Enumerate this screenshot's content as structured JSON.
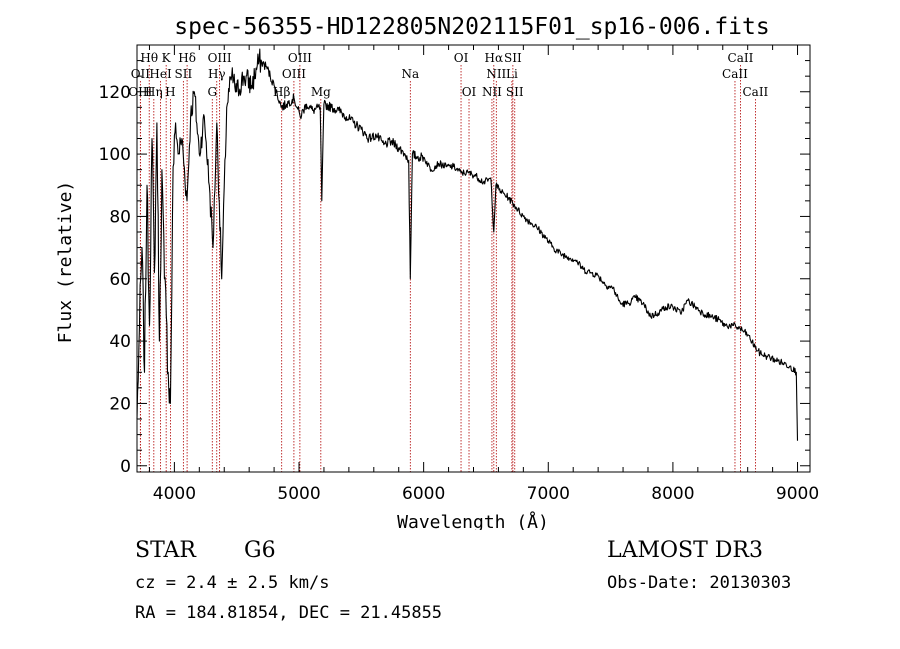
{
  "chart_data": {
    "type": "line",
    "title": "spec-56355-HD122805N202115F01_sp16-006.fits",
    "xlabel": "Wavelength (Å)",
    "ylabel": "Flux (relative)",
    "xlim": [
      3700,
      9100
    ],
    "ylim": [
      -2,
      135
    ],
    "x_ticks": [
      4000,
      5000,
      6000,
      7000,
      8000,
      9000
    ],
    "y_ticks": [
      0,
      20,
      40,
      60,
      80,
      100,
      120
    ],
    "grid": false,
    "series": [
      {
        "name": "spectrum",
        "x": [
          3700,
          3720,
          3740,
          3760,
          3780,
          3800,
          3820,
          3840,
          3860,
          3880,
          3900,
          3920,
          3935,
          3950,
          3968,
          3990,
          4010,
          4030,
          4060,
          4101,
          4130,
          4160,
          4200,
          4240,
          4280,
          4310,
          4340,
          4380,
          4420,
          4460,
          4500,
          4560,
          4620,
          4680,
          4740,
          4800,
          4861,
          4900,
          4960,
          5010,
          5060,
          5110,
          5170,
          5183,
          5200,
          5260,
          5320,
          5380,
          5440,
          5500,
          5560,
          5620,
          5680,
          5740,
          5800,
          5850,
          5880,
          5893,
          5910,
          5950,
          6000,
          6060,
          6120,
          6180,
          6240,
          6300,
          6360,
          6420,
          6480,
          6540,
          6563,
          6580,
          6620,
          6680,
          6740,
          6800,
          6860,
          6920,
          6980,
          7040,
          7100,
          7160,
          7220,
          7280,
          7340,
          7400,
          7460,
          7520,
          7580,
          7640,
          7700,
          7760,
          7820,
          7880,
          7940,
          8000,
          8060,
          8120,
          8180,
          8240,
          8300,
          8360,
          8420,
          8480,
          8540,
          8600,
          8660,
          8700,
          8760,
          8820,
          8880,
          8940,
          8990,
          9000
        ],
        "y": [
          15,
          45,
          70,
          30,
          90,
          45,
          105,
          62,
          110,
          40,
          95,
          60,
          48,
          30,
          20,
          96,
          110,
          100,
          105,
          85,
          112,
          120,
          100,
          112,
          90,
          70,
          110,
          60,
          115,
          125,
          120,
          125,
          122,
          130,
          128,
          122,
          115,
          116,
          118,
          112,
          116,
          114,
          115,
          85,
          116,
          115,
          114,
          112,
          110,
          108,
          105,
          106,
          103,
          104,
          102,
          100,
          98,
          60,
          100,
          99,
          99,
          95,
          97,
          96,
          96,
          94,
          94,
          93,
          91,
          92,
          75,
          90,
          88,
          86,
          83,
          80,
          78,
          76,
          73,
          70,
          68,
          67,
          66,
          63,
          62,
          61,
          58,
          57,
          52,
          52,
          54,
          52,
          48,
          49,
          51,
          51,
          49,
          53,
          51,
          49,
          48,
          47,
          45,
          45,
          44,
          42,
          38,
          36,
          35,
          34,
          33,
          32,
          30,
          8
        ]
      }
    ],
    "emission_lines": [
      {
        "label": "Hθ",
        "x": 3798,
        "row": 1
      },
      {
        "label": "OII",
        "x": 3727,
        "row": 2
      },
      {
        "label": "OIII",
        "x": 3727,
        "row": 3
      },
      {
        "label": "K",
        "x": 3934,
        "row": 1
      },
      {
        "label": "HeI",
        "x": 3889,
        "row": 2
      },
      {
        "label": "Hη",
        "x": 3835,
        "row": 3
      },
      {
        "label": "Hδ",
        "x": 4102,
        "row": 1
      },
      {
        "label": "SII",
        "x": 4072,
        "row": 2
      },
      {
        "label": "H",
        "x": 3968,
        "row": 3
      },
      {
        "label": "OIII",
        "x": 4363,
        "row": 1
      },
      {
        "label": "Hγ",
        "x": 4340,
        "row": 2
      },
      {
        "label": "G",
        "x": 4304,
        "row": 3
      },
      {
        "label": "OIII",
        "x": 5007,
        "row": 1
      },
      {
        "label": "OIII",
        "x": 4959,
        "row": 2
      },
      {
        "label": "Hβ",
        "x": 4861,
        "row": 3
      },
      {
        "label": "Mg",
        "x": 5175,
        "row": 3
      },
      {
        "label": "Na",
        "x": 5893,
        "row": 2
      },
      {
        "label": "OI",
        "x": 6300,
        "row": 1
      },
      {
        "label": "OI",
        "x": 6364,
        "row": 3
      },
      {
        "label": "Hα",
        "x": 6563,
        "row": 1
      },
      {
        "label": "SII",
        "x": 6716,
        "row": 1
      },
      {
        "label": "NII",
        "x": 6583,
        "row": 2
      },
      {
        "label": "Li",
        "x": 6708,
        "row": 2
      },
      {
        "label": "NII",
        "x": 6548,
        "row": 3
      },
      {
        "label": "SII",
        "x": 6731,
        "row": 3
      },
      {
        "label": "CaII",
        "x": 8542,
        "row": 1
      },
      {
        "label": "CaII",
        "x": 8498,
        "row": 2
      },
      {
        "label": "CaII",
        "x": 8662,
        "row": 3
      }
    ]
  },
  "info": {
    "object_type": "STAR",
    "subclass": "G6",
    "survey": "LAMOST DR3",
    "cz": "cz = 2.4 ± 2.5 km/s",
    "obs_date": "Obs-Date: 20130303",
    "coords": "RA = 184.81854, DEC =  21.45855"
  },
  "colors": {
    "spectrum": "#000000",
    "line_marker": "#b00000",
    "axis": "#000000"
  }
}
